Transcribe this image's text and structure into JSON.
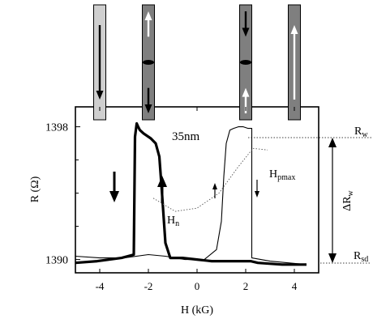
{
  "chart_data": {
    "type": "line",
    "annotation_thickness": "35nm",
    "xlabel": "H (kG)",
    "ylabel": "R (Ω)",
    "xlim": [
      -5,
      5
    ],
    "ylim": [
      1389.2,
      1399.2
    ],
    "x_ticks": [
      -4,
      -2,
      0,
      2,
      4
    ],
    "x_tick_labels": [
      "-4",
      "-2",
      "0",
      "2",
      "4"
    ],
    "y_tick_labels": [
      {
        "value": 1398,
        "label": "1398"
      },
      {
        "value": 1390,
        "label": "1390"
      }
    ],
    "series": [
      {
        "description": "sweep down (thick)",
        "x": [
          4.5,
          3.5,
          2.5,
          2.2,
          1.8,
          1.2,
          0.6,
          0,
          -0.6,
          -1.1,
          -1.3,
          -1.45,
          -1.55,
          -1.7,
          -1.9,
          -2.2,
          -2.35,
          -2.42,
          -2.48,
          -2.55,
          -2.6,
          -3.1,
          -4.1,
          -5.0
        ],
        "y": [
          1389.7,
          1389.7,
          1389.8,
          1389.9,
          1389.9,
          1389.9,
          1389.9,
          1390.0,
          1390.1,
          1390.1,
          1391.0,
          1394.2,
          1396.2,
          1397.0,
          1397.3,
          1397.6,
          1397.8,
          1398.0,
          1398.2,
          1397.4,
          1390.3,
          1390.1,
          1389.9,
          1389.8
        ]
      },
      {
        "description": "sweep up (thin)",
        "x": [
          -5.0,
          -4.0,
          -3.0,
          -2.0,
          -1.3,
          -0.5,
          0.3,
          0.8,
          1.0,
          1.1,
          1.2,
          1.35,
          1.5,
          1.7,
          1.9,
          2.1,
          2.25,
          2.25,
          3.0,
          4.5
        ],
        "y": [
          1390.2,
          1390.1,
          1390.1,
          1390.3,
          1390.2,
          1390.0,
          1390.0,
          1390.6,
          1392.3,
          1395.0,
          1397.0,
          1397.8,
          1397.9,
          1398.0,
          1398.0,
          1397.9,
          1397.9,
          1390.1,
          1389.9,
          1389.7
        ]
      },
      {
        "description": "dotted guide",
        "x": [
          -1.8,
          -0.9,
          0.0,
          0.9,
          1.7,
          2.3,
          2.9
        ],
        "y": [
          1393.7,
          1392.9,
          1393.1,
          1394.0,
          1395.6,
          1396.7,
          1396.6
        ]
      }
    ],
    "right_labels": {
      "rw": "R",
      "rw_sub": "w",
      "rsd": "R",
      "rsd_sub": "sd",
      "delta": "ΔR",
      "delta_sub": "w"
    },
    "curve_labels": {
      "hn": "H",
      "hn_sub": "n",
      "hpmax": "H",
      "hpmax_sub": "pmax"
    },
    "magnetization_diagram": {
      "bars": [
        {
          "center_x_kG": -4.0,
          "shade": "#cfcfcf",
          "arrows": [
            "down"
          ]
        },
        {
          "center_x_kG": -2.0,
          "shade": "#7f7f7f",
          "arrows": [
            "up",
            "wall",
            "down"
          ]
        },
        {
          "center_x_kG": 2.0,
          "shade": "#7f7f7f",
          "arrows": [
            "down",
            "wall",
            "up"
          ]
        },
        {
          "center_x_kG": 4.0,
          "shade": "#7f7f7f",
          "arrows": [
            "up"
          ]
        }
      ]
    },
    "colors": {
      "curve": "#000000",
      "dotted": "#555555",
      "bar_light": "#cfcfcf",
      "bar_dark": "#7f7f7f"
    }
  }
}
